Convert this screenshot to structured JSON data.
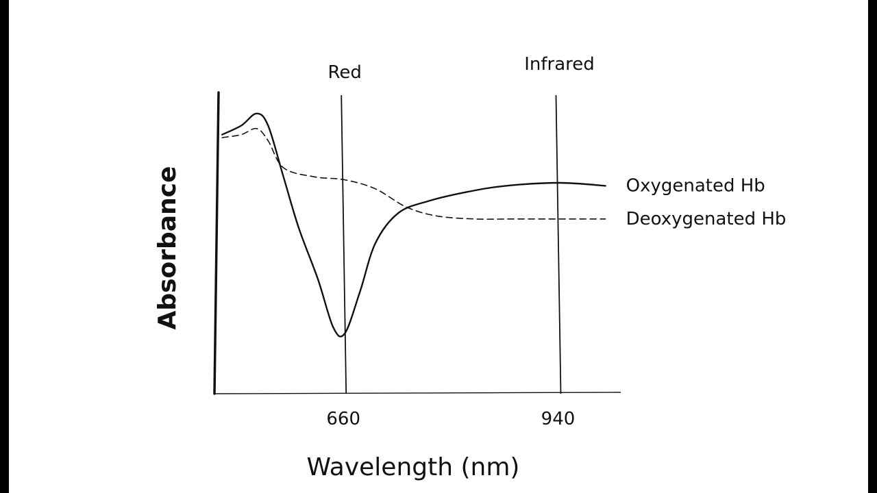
{
  "chart_data": {
    "type": "line",
    "title": "",
    "xlabel": "Wavelength (nm)",
    "ylabel": "Absorbance",
    "x_ticks": [
      660,
      940
    ],
    "xlim": [
      490,
      1020
    ],
    "ylim": [
      0,
      1
    ],
    "grid": false,
    "legend": "right, labels at series ends",
    "reference_lines": [
      {
        "x": 660,
        "label": "Red"
      },
      {
        "x": 940,
        "label": "Infrared"
      }
    ],
    "series": [
      {
        "name": "Oxygenated Hb",
        "style": "solid",
        "x": [
          500,
          525,
          545,
          560,
          580,
          600,
          625,
          645,
          660,
          680,
          700,
          730,
          770,
          820,
          870,
          940,
          1000
        ],
        "y": [
          0.86,
          0.89,
          0.93,
          0.89,
          0.72,
          0.55,
          0.38,
          0.22,
          0.2,
          0.34,
          0.5,
          0.6,
          0.64,
          0.67,
          0.69,
          0.7,
          0.69
        ]
      },
      {
        "name": "Deoxygenated Hb",
        "style": "dashed",
        "x": [
          500,
          525,
          545,
          560,
          580,
          620,
          660,
          700,
          740,
          780,
          830,
          880,
          940,
          1000
        ],
        "y": [
          0.85,
          0.86,
          0.88,
          0.84,
          0.75,
          0.72,
          0.71,
          0.68,
          0.62,
          0.59,
          0.58,
          0.58,
          0.58,
          0.58
        ]
      }
    ]
  }
}
